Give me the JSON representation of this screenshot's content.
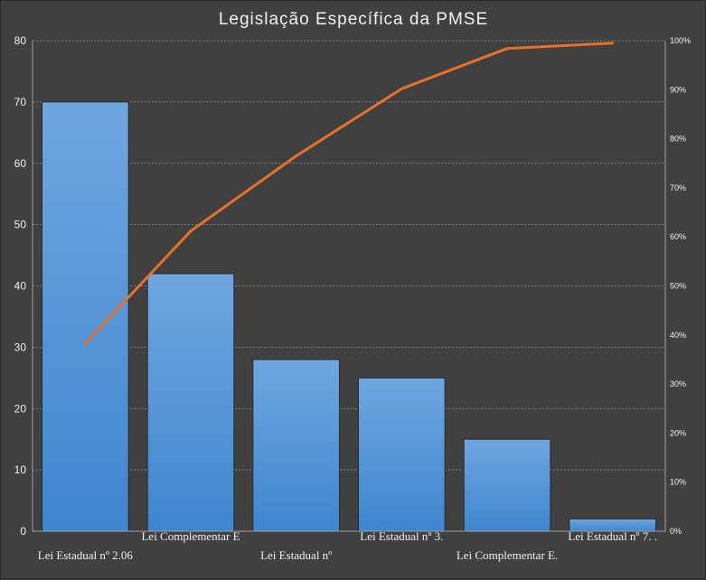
{
  "chart_data": {
    "type": "bar",
    "title": "Legislação Específica da PMSE",
    "categories": [
      "Lei Estadual nº 2.06",
      "Lei Complementar E",
      "Lei Estadual nº",
      "Lei Estadual nº 3.",
      "Lei Complementar E.",
      "Lei Estadual nº 7. ."
    ],
    "values": [
      70,
      42,
      28,
      25,
      15,
      2
    ],
    "ylim": [
      0,
      80
    ],
    "yticks": [
      "0",
      "10",
      "20",
      "30",
      "40",
      "50",
      "60",
      "70",
      "80"
    ],
    "secondary_axis": {
      "ylim": [
        0,
        100
      ],
      "ticks": [
        "0%",
        "10%",
        "20%",
        "30%",
        "40%",
        "50%",
        "60%",
        "70%",
        "80%",
        "90%",
        "100%"
      ]
    },
    "line_series": {
      "type": "line",
      "axis": "secondary",
      "values_percent": [
        38.3,
        61.2,
        76.5,
        90.2,
        98.4,
        99.5
      ]
    },
    "grid": true,
    "legend": "none",
    "colors": {
      "background": "#404040",
      "bar_top": "#6fa6e0",
      "bar_bottom": "#3f86cf",
      "line": "#e8702a",
      "text": "#f2f2f2"
    }
  }
}
